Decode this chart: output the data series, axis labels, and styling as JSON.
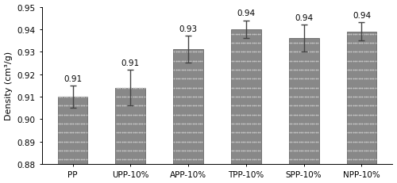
{
  "categories": [
    "PP",
    "UPP-10%",
    "APP-10%",
    "TPP-10%",
    "SPP-10%",
    "NPP-10%"
  ],
  "values": [
    0.91,
    0.914,
    0.931,
    0.94,
    0.936,
    0.939
  ],
  "errors": [
    0.005,
    0.008,
    0.006,
    0.004,
    0.006,
    0.004
  ],
  "labels": [
    "0.91",
    "0.91",
    "0.93",
    "0.94",
    "0.94",
    "0.94"
  ],
  "bar_color": "#888888",
  "bar_edgecolor": "#666666",
  "dot_color": "#c8c8c8",
  "ylabel": "Density (cm³/g)",
  "ylim": [
    0.88,
    0.95
  ],
  "yticks": [
    0.88,
    0.89,
    0.9,
    0.91,
    0.92,
    0.93,
    0.94,
    0.95
  ],
  "bar_width": 0.52,
  "label_fontsize": 7.5,
  "tick_fontsize": 7.5,
  "ylabel_fontsize": 8,
  "background_color": "#ffffff",
  "error_color": "#444444",
  "figsize": [
    5.0,
    2.32
  ],
  "dpi": 100
}
